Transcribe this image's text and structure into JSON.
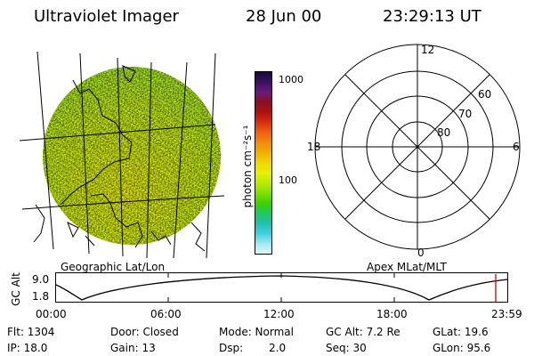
{
  "header": {
    "title": "Ultraviolet Imager",
    "date": "28 Jun 00",
    "time": "23:29:13 UT"
  },
  "colorbar": {
    "label": "photon cm⁻²s⁻¹",
    "ticks": [
      "1000",
      "100"
    ],
    "colors": [
      "#1a0a3a",
      "#3a1060",
      "#6a1a7a",
      "#8a1020",
      "#b01010",
      "#d83010",
      "#f06010",
      "#f08c10",
      "#f0b000",
      "#f0d800",
      "#e8f000",
      "#b8ec00",
      "#80e000",
      "#40d000",
      "#20c860",
      "#20c0b0",
      "#40d0e0",
      "#a0e8f0",
      "#e0f8f8"
    ]
  },
  "map": {
    "caption": "Geographic Lat/Lon"
  },
  "polar": {
    "caption": "Apex MLat/MLT",
    "mlt_labels": [
      "12",
      "18",
      "6",
      "0"
    ],
    "lat_labels": [
      "60",
      "70",
      "80"
    ]
  },
  "timeline": {
    "ylabel": "GC Alt",
    "ymax": "9.0",
    "ymin": "1.8",
    "ticks": [
      "00:00",
      "06:00",
      "12:00",
      "18:00",
      "23:59"
    ],
    "current_marker_color": "#d01010"
  },
  "status": {
    "flt": "Flt: 1304",
    "ip": "IP: 18.0",
    "door": "Door: Closed",
    "gain": "Gain: 13",
    "mode": "Mode: Normal",
    "dsp_label": "Dsp:",
    "dsp_value": "2.0",
    "gcalt": "GC Alt: 7.2 Re",
    "seq": "Seq: 30",
    "glat": "GLat: 19.6",
    "glon": "GLon: 95.6"
  }
}
